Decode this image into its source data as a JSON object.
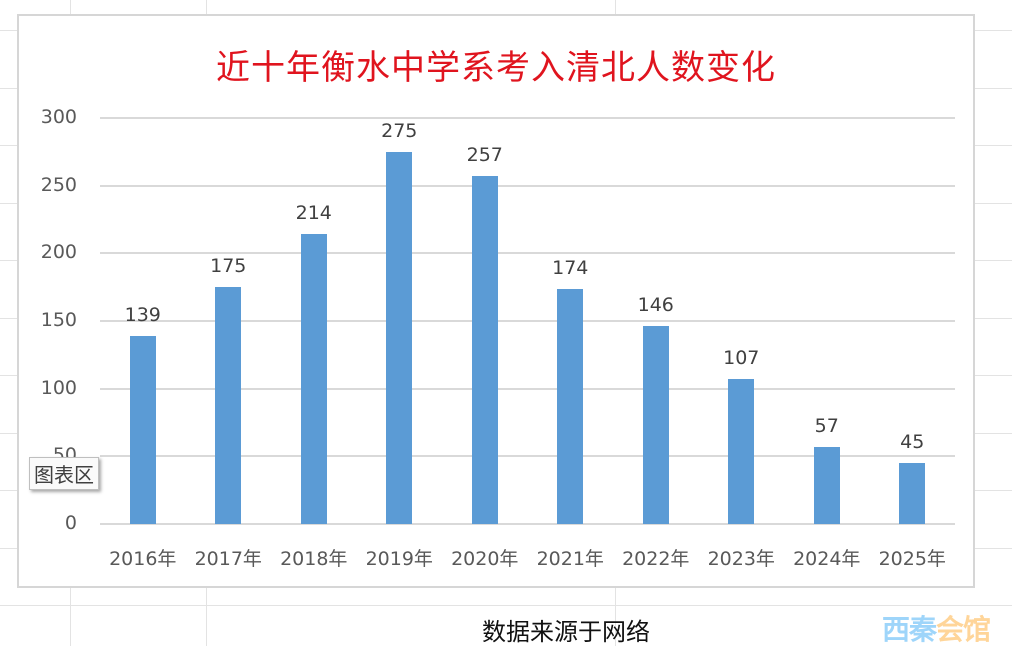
{
  "sheet": {
    "source_note": "数据来源于网络",
    "watermark_part1": "西秦",
    "watermark_part2": "会馆"
  },
  "tooltip": {
    "label": "图表区"
  },
  "colors": {
    "title": "#e0141e",
    "bar": "#5b9bd5",
    "gridline": "#d9d9d9",
    "axis_text": "#595959"
  },
  "chart_data": {
    "type": "bar",
    "title": "近十年衡水中学系考入清北人数变化",
    "categories": [
      "2016年",
      "2017年",
      "2018年",
      "2019年",
      "2020年",
      "2021年",
      "2022年",
      "2023年",
      "2024年",
      "2025年"
    ],
    "values": [
      139,
      175,
      214,
      275,
      257,
      174,
      146,
      107,
      57,
      45
    ],
    "data_labels": [
      "139",
      "175",
      "214",
      "275",
      "257",
      "174",
      "146",
      "107",
      "57",
      "45"
    ],
    "xlabel": "",
    "ylabel": "",
    "ylim": [
      0,
      300
    ],
    "yticks": [
      "0",
      "50",
      "100",
      "150",
      "200",
      "250",
      "300"
    ],
    "grid": true,
    "legend": "none"
  }
}
